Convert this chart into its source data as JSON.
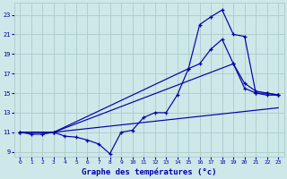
{
  "title": "Graphe des températures (°c)",
  "bg_color": "#cce8e8",
  "grid_color": "#aacccc",
  "line_color": "#0000aa",
  "xlim": [
    -0.5,
    23.5
  ],
  "ylim": [
    8.5,
    24.2
  ],
  "yticks": [
    9,
    11,
    13,
    15,
    17,
    19,
    21,
    23
  ],
  "xticks": [
    0,
    1,
    2,
    3,
    4,
    5,
    6,
    7,
    8,
    9,
    10,
    11,
    12,
    13,
    14,
    15,
    16,
    17,
    18,
    19,
    20,
    21,
    22,
    23
  ],
  "line1_x": [
    0,
    1,
    2,
    3,
    4,
    5,
    6,
    7,
    8,
    9,
    10,
    11,
    12,
    13,
    14,
    15,
    16,
    17,
    18,
    19,
    20,
    21,
    22,
    23
  ],
  "line1_y": [
    11.0,
    10.8,
    10.8,
    11.0,
    10.6,
    10.5,
    10.2,
    9.8,
    8.8,
    11.0,
    11.2,
    12.5,
    13.0,
    13.0,
    14.8,
    17.5,
    18.0,
    19.5,
    20.5,
    18.0,
    16.0,
    15.2,
    15.0,
    14.8
  ],
  "line2_x": [
    0,
    3,
    23
  ],
  "line2_y": [
    11.0,
    11.0,
    13.5
  ],
  "line3_x": [
    0,
    3,
    19,
    20,
    21,
    22,
    23
  ],
  "line3_y": [
    11.0,
    11.0,
    18.0,
    15.5,
    15.0,
    14.8,
    14.8
  ],
  "line4_x": [
    0,
    3,
    15,
    16,
    17,
    18,
    19,
    20,
    21,
    22,
    23
  ],
  "line4_y": [
    11.0,
    11.0,
    17.5,
    22.0,
    22.8,
    23.5,
    21.0,
    20.8,
    15.0,
    15.0,
    14.8
  ]
}
